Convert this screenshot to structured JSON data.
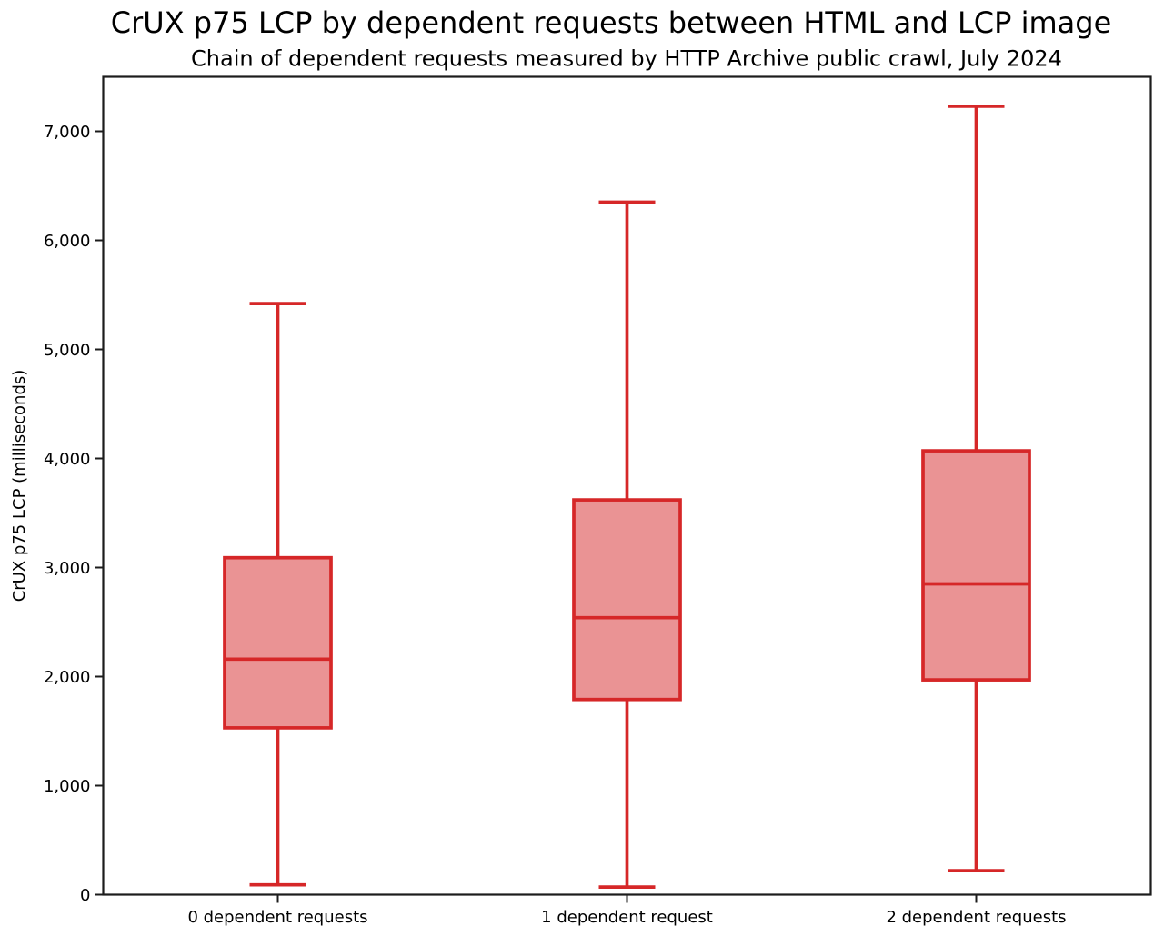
{
  "chart_data": {
    "type": "boxplot",
    "title": "CrUX p75 LCP by dependent requests between HTML and LCP image",
    "subtitle": "Chain of dependent requests measured by HTTP Archive public crawl, July 2024",
    "xlabel": "",
    "ylabel": "CrUX p75 LCP (milliseconds)",
    "ylim": [
      0,
      7500
    ],
    "yticks": [
      0,
      1000,
      2000,
      3000,
      4000,
      5000,
      6000,
      7000
    ],
    "ytick_labels": [
      "0",
      "1,000",
      "2,000",
      "3,000",
      "4,000",
      "5,000",
      "6,000",
      "7,000"
    ],
    "categories": [
      "0 dependent requests",
      "1 dependent request",
      "2 dependent requests"
    ],
    "series": [
      {
        "category": "0 dependent requests",
        "whisker_min": 90,
        "q1": 1530,
        "median": 2160,
        "q3": 3090,
        "whisker_max": 5420
      },
      {
        "category": "1 dependent request",
        "whisker_min": 70,
        "q1": 1790,
        "median": 2540,
        "q3": 3620,
        "whisker_max": 6350
      },
      {
        "category": "2 dependent requests",
        "whisker_min": 220,
        "q1": 1970,
        "median": 2850,
        "q3": 4070,
        "whisker_max": 7230
      }
    ],
    "grid": false,
    "legend": false,
    "colors": {
      "box_edge": "#d62728",
      "box_fill": "#ea9394",
      "axis": "#1c1c1c",
      "text": "#000000",
      "background": "#ffffff"
    }
  }
}
